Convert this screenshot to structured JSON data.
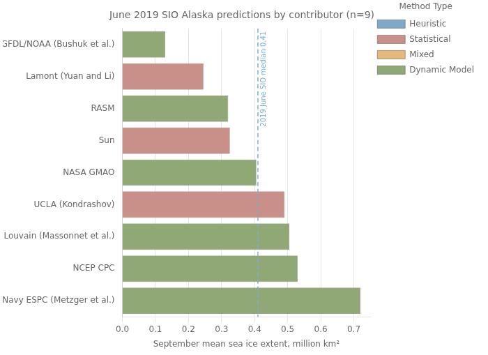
{
  "chart_data": {
    "type": "bar",
    "orientation": "horizontal",
    "title": "June 2019 SIO Alaska predictions by contributor (n=9)",
    "xlabel": "September mean sea ice extent, million km²",
    "categories": [
      "Navy ESPC (Metzger et al.)",
      "NCEP CPC",
      "UC Louvain (Massonnet et al.)",
      "UCLA (Kondrashov)",
      "NASA GMAO",
      "Sun",
      "RASM",
      "Lamont (Yuan and Li)",
      "GFDL/NOAA (Bushuk et al.)"
    ],
    "values": [
      0.72,
      0.53,
      0.505,
      0.49,
      0.405,
      0.325,
      0.32,
      0.245,
      0.13
    ],
    "colors": [
      "#8fa876",
      "#8fa876",
      "#8fa876",
      "#c9908a",
      "#8fa876",
      "#c9908a",
      "#8fa876",
      "#c9908a",
      "#8fa876"
    ],
    "xlim": [
      0.0,
      0.75
    ],
    "xticks": [
      {
        "value": 0.0,
        "label": "0.0"
      },
      0.1,
      0.2,
      0.3,
      0.4,
      0.5,
      0.6,
      0.7
    ],
    "grid": "x",
    "reference_lines": [
      {
        "value": 0.41,
        "label": "2019 June SIO median 0.41",
        "color": "#7aaed0",
        "line_style": "dashed"
      }
    ],
    "legend": "right",
    "legend_title": "Method Type",
    "legend_entries": [
      {
        "name": "Heuristic",
        "color": "#7fa8c9"
      },
      {
        "name": "Statistical",
        "color": "#c9908a"
      },
      {
        "name": "Mixed",
        "color": "#e6b87a"
      },
      {
        "name": "Dynamic Model",
        "color": "#8fa876"
      }
    ]
  }
}
